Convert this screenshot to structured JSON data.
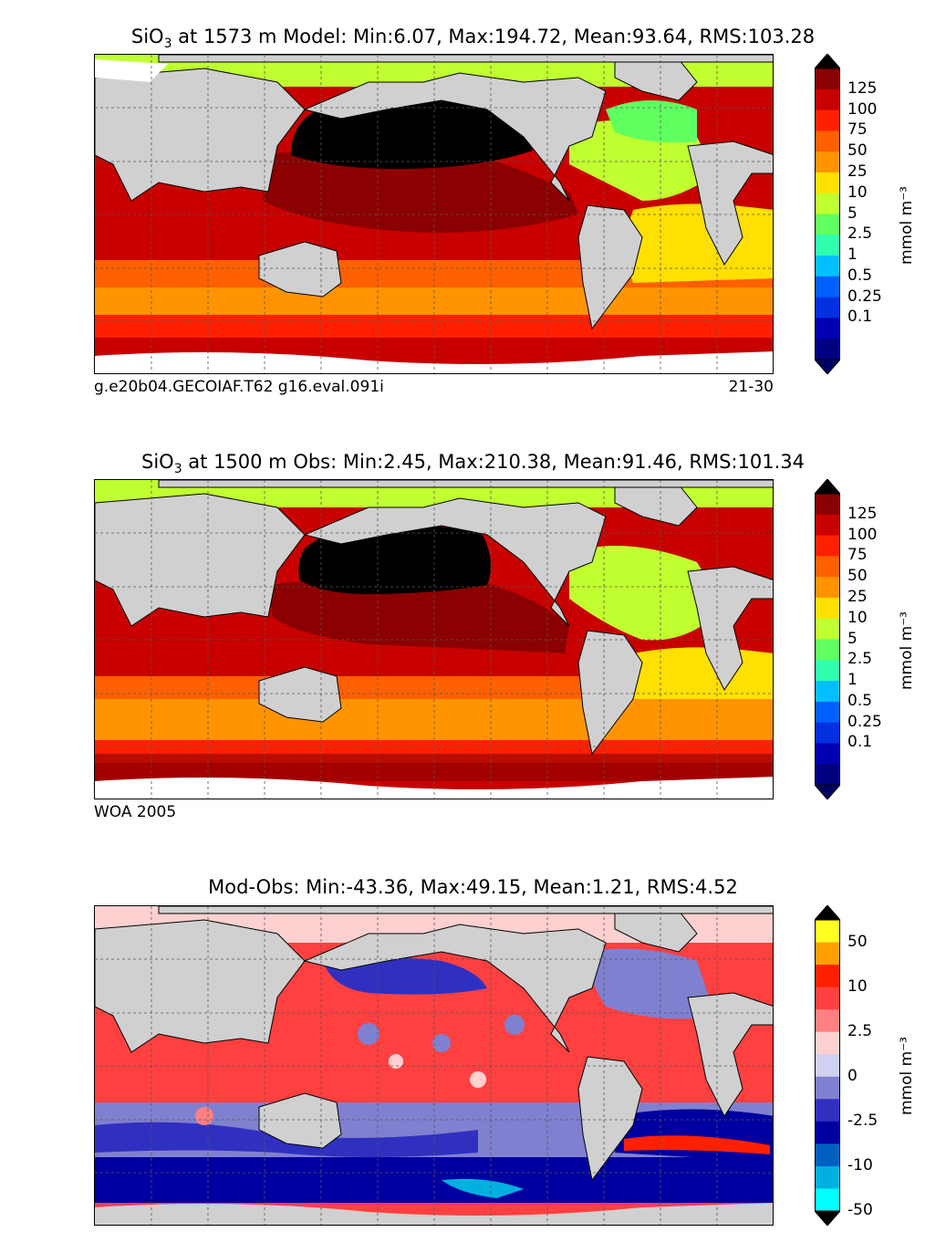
{
  "panels": [
    {
      "title_prefix": "SiO",
      "title_sub": "3",
      "title_rest": " at 1573 m Model: Min:6.07, Max:194.72, Mean:93.64, RMS:103.28",
      "caption_left": "g.e20b04.GECOIAF.T62 g16.eval.091i",
      "caption_right": "21-30",
      "colorbar": {
        "unit": "mmol m⁻³",
        "ticks": [
          "125",
          "100",
          "75",
          "50",
          "25",
          "10",
          "5",
          "2.5",
          "1",
          "0.5",
          "0.25",
          "0.1"
        ],
        "colors": [
          "#8b0000",
          "#c80000",
          "#ff2000",
          "#ff6000",
          "#ff9400",
          "#ffe000",
          "#c0ff30",
          "#60ff60",
          "#30ffb0",
          "#00c0ff",
          "#0060ff",
          "#0030e0",
          "#0000b0",
          "#000080"
        ],
        "over": "#000000",
        "under": "#000060"
      }
    },
    {
      "title_prefix": "SiO",
      "title_sub": "3",
      "title_rest": " at 1500 m Obs: Min:2.45, Max:210.38, Mean:91.46, RMS:101.34",
      "caption_left": "WOA 2005",
      "caption_right": "",
      "colorbar": {
        "unit": "mmol m⁻³",
        "ticks": [
          "125",
          "100",
          "75",
          "50",
          "25",
          "10",
          "5",
          "2.5",
          "1",
          "0.5",
          "0.25",
          "0.1"
        ],
        "colors": [
          "#8b0000",
          "#c80000",
          "#ff2000",
          "#ff6000",
          "#ff9400",
          "#ffe000",
          "#c0ff30",
          "#60ff60",
          "#30ffb0",
          "#00c0ff",
          "#0060ff",
          "#0030e0",
          "#0000b0",
          "#000080"
        ],
        "over": "#000000",
        "under": "#000060"
      }
    },
    {
      "title_prefix": "Mod-Obs: Min:-43.36, Max:49.15, Mean:1.21, RMS:4.52",
      "title_sub": "",
      "title_rest": "",
      "caption_left": "",
      "caption_right": "",
      "colorbar": {
        "unit": "mmol m⁻³",
        "ticks": [
          "50",
          "10",
          "2.5",
          "0",
          "-2.5",
          "-10",
          "-50"
        ],
        "colors": [
          "#ffff20",
          "#ffa000",
          "#ff2000",
          "#ff4040",
          "#ff8080",
          "#ffd0d0",
          "#d0d0f0",
          "#8080d0",
          "#3030c0",
          "#0000a0",
          "#0060c0",
          "#00b0e0",
          "#00ffff"
        ],
        "over": "#000000",
        "under": "#000000"
      }
    }
  ]
}
